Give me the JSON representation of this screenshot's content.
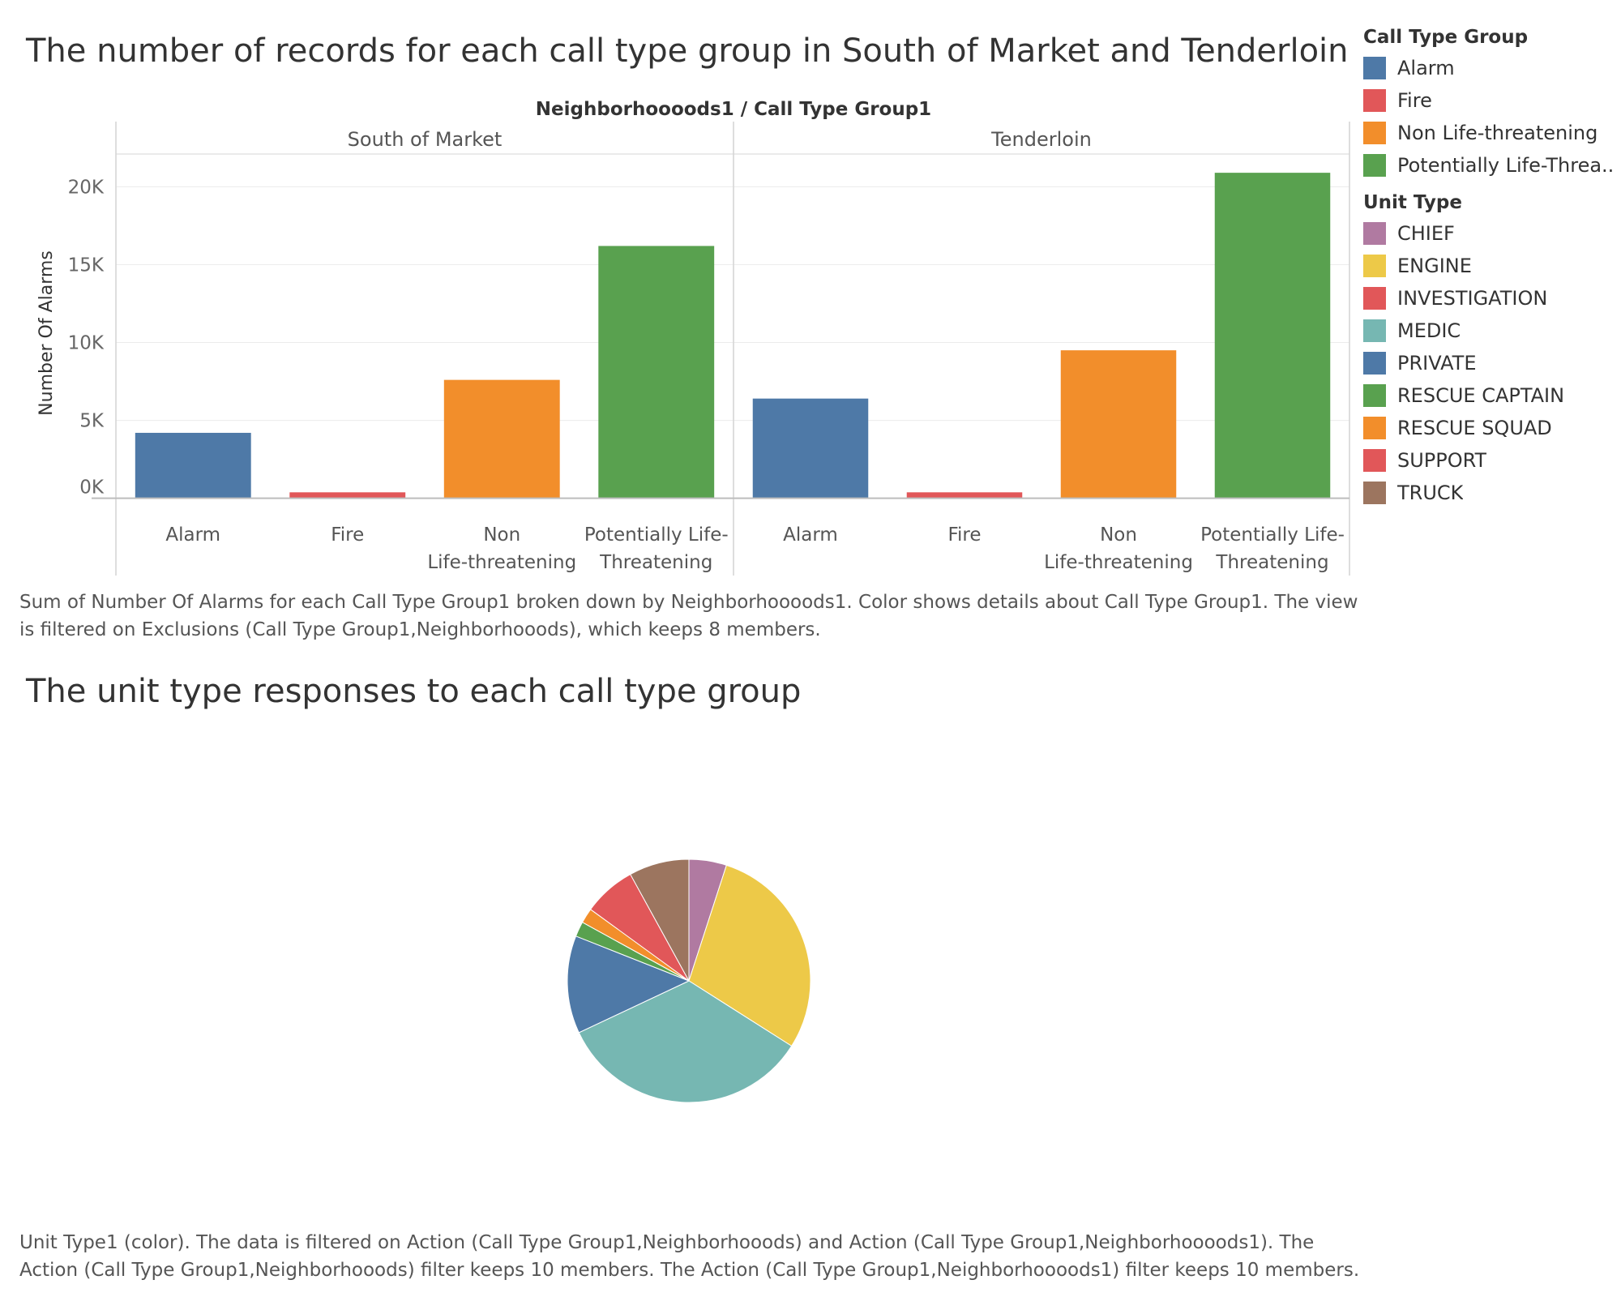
{
  "bar_section": {
    "title": "The number of records for each call type group in South of Market and Tenderloin",
    "caption": "Sum of Number Of Alarms for each Call Type Group1 broken down by Neighborhoooods1.  Color shows details about Call Type Group1. The view is filtered on Exclusions (Call Type Group1,Neighborhooods), which keeps 8 members."
  },
  "pie_section": {
    "title": "The unit type responses to each call type group",
    "caption": "Unit Type1 (color). The data is filtered on Action (Call Type Group1,Neighborhooods) and Action (Call Type Group1,Neighborhoooods1). The Action (Call Type Group1,Neighborhooods) filter keeps 10 members. The Action (Call Type Group1,Neighborhoooods1) filter keeps 10 members."
  },
  "legends": {
    "call_type": {
      "title": "Call Type Group",
      "items": [
        {
          "label": "Alarm",
          "color": "#4e79a7"
        },
        {
          "label": "Fire",
          "color": "#e15759"
        },
        {
          "label": "Non Life-threatening",
          "color": "#f28e2b"
        },
        {
          "label": "Potentially Life-Threa..",
          "color": "#59a14f"
        }
      ]
    },
    "unit_type": {
      "title": "Unit Type",
      "items": [
        {
          "label": "CHIEF",
          "color": "#b07aa1"
        },
        {
          "label": "ENGINE",
          "color": "#edc948"
        },
        {
          "label": "INVESTIGATION",
          "color": "#e15759"
        },
        {
          "label": "MEDIC",
          "color": "#76b7b2"
        },
        {
          "label": "PRIVATE",
          "color": "#4e79a7"
        },
        {
          "label": "RESCUE CAPTAIN",
          "color": "#59a14f"
        },
        {
          "label": "RESCUE SQUAD",
          "color": "#f28e2b"
        },
        {
          "label": "SUPPORT",
          "color": "#e15759"
        },
        {
          "label": "TRUCK",
          "color": "#9c755f"
        }
      ]
    }
  },
  "chart_data": [
    {
      "type": "bar",
      "header": "Neighborhoooods1  /  Call Type Group1",
      "ylabel": "Number Of Alarms",
      "ylim": [
        -800,
        22000
      ],
      "yticks": [
        0,
        5000,
        10000,
        15000,
        20000
      ],
      "ytick_labels": [
        "0K",
        "5K",
        "10K",
        "15K",
        "20K"
      ],
      "grid": true,
      "categories": [
        "Alarm",
        "Fire",
        "Non Life-threatening",
        "Potentially Life-Threatening"
      ],
      "category_labels": [
        [
          "Alarm"
        ],
        [
          "Fire"
        ],
        [
          "Non",
          "Life-threatening"
        ],
        [
          "Potentially Life-",
          "Threatening"
        ]
      ],
      "colors": [
        "#4e79a7",
        "#e15759",
        "#f28e2b",
        "#59a14f"
      ],
      "panels": [
        {
          "name": "South of Market",
          "values": [
            4200,
            380,
            7600,
            16200
          ]
        },
        {
          "name": "Tenderloin",
          "values": [
            6400,
            380,
            9500,
            20900
          ]
        }
      ]
    },
    {
      "type": "pie",
      "slices": [
        {
          "label": "CHIEF",
          "value": 5,
          "color": "#b07aa1"
        },
        {
          "label": "ENGINE",
          "value": 29,
          "color": "#edc948"
        },
        {
          "label": "MEDIC",
          "value": 34,
          "color": "#76b7b2"
        },
        {
          "label": "PRIVATE",
          "value": 13,
          "color": "#4e79a7"
        },
        {
          "label": "RESCUE CAPTAIN",
          "value": 2,
          "color": "#59a14f"
        },
        {
          "label": "RESCUE SQUAD",
          "value": 2,
          "color": "#f28e2b"
        },
        {
          "label": "SUPPORT",
          "value": 7,
          "color": "#e15759"
        },
        {
          "label": "TRUCK",
          "value": 8,
          "color": "#9c755f"
        }
      ]
    }
  ]
}
